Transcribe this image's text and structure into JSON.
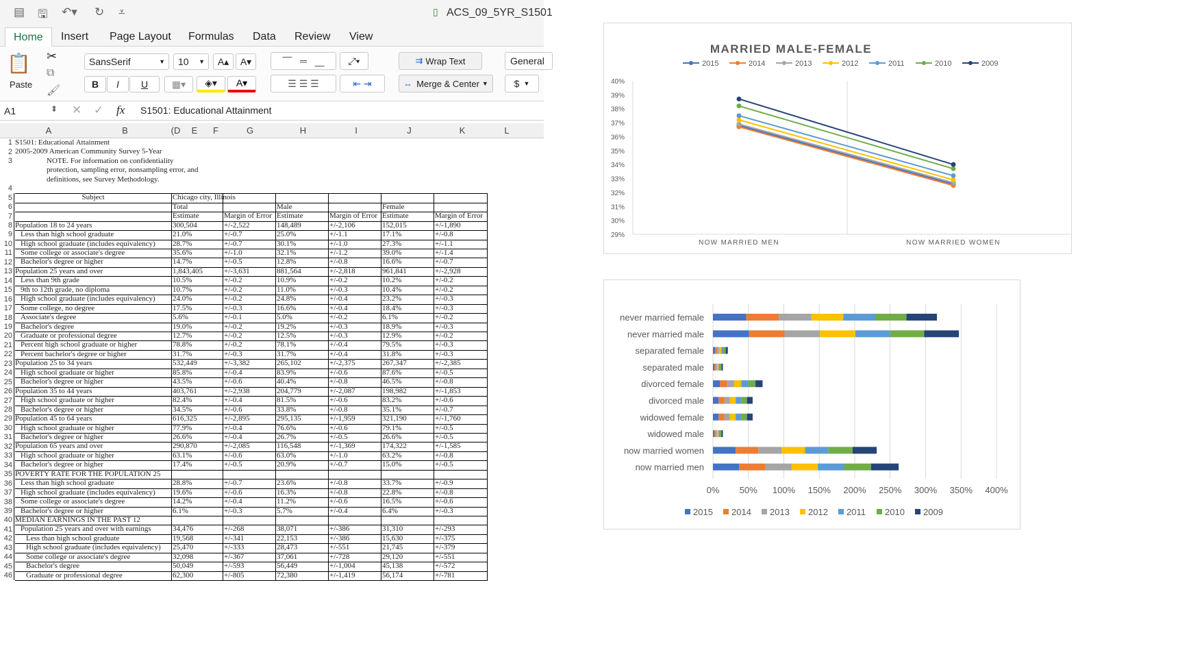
{
  "window": {
    "title": "ACS_09_5YR_S1501"
  },
  "tabs": [
    "Home",
    "Insert",
    "Page Layout",
    "Formulas",
    "Data",
    "Review",
    "View"
  ],
  "ribbon": {
    "paste": "Paste",
    "font": "SansSerif",
    "size": "10",
    "wrap": "Wrap Text",
    "merge": "Merge & Center",
    "number_format": "General",
    "currency": "$",
    "bold": "B",
    "italic": "I",
    "underline": "U"
  },
  "formula_bar": {
    "cell": "A1",
    "fx": "fx",
    "formula": "S1501: Educational Attainment"
  },
  "columns": [
    "A",
    "B",
    "(D",
    "E",
    "F",
    "G",
    "H",
    "I",
    "J",
    "K",
    "L"
  ],
  "sheet": {
    "header_rows": [
      {
        "n": "1",
        "a": "S1501: Educational Attainment"
      },
      {
        "n": "2",
        "a": "2005-2009 American Community Survey 5-Year"
      },
      {
        "n": "3",
        "a": "NOTE. For information on confidentiality"
      },
      {
        "n": "",
        "a": "protection, sampling error, nonsampling error, and"
      },
      {
        "n": "",
        "a": "definitions, see Survey Methodology."
      },
      {
        "n": "4",
        "a": ""
      }
    ],
    "subject": "Subject",
    "place": "Chicago city, Illinois",
    "groups": [
      "Total",
      "Male",
      "Female"
    ],
    "subheads": [
      "Estimate",
      "Margin of Error",
      "Estimate",
      "Margin of Error",
      "Estimate",
      "Margin of Error"
    ],
    "data": [
      {
        "n": "8",
        "s": "Population 18 to 24 years",
        "i": 0,
        "v": [
          "300,504",
          "+/-2,522",
          "148,489",
          "+/-2,106",
          "152,015",
          "+/-1,890"
        ]
      },
      {
        "n": "9",
        "s": "Less than high school graduate",
        "i": 1,
        "v": [
          "21.0%",
          "+/-0.7",
          "25.0%",
          "+/-1.1",
          "17.1%",
          "+/-0.8"
        ]
      },
      {
        "n": "10",
        "s": "High school graduate (includes equivalency)",
        "i": 1,
        "v": [
          "28.7%",
          "+/-0.7",
          "30.1%",
          "+/-1.0",
          "27.3%",
          "+/-1.1"
        ]
      },
      {
        "n": "11",
        "s": "Some college or associate's degree",
        "i": 1,
        "v": [
          "35.6%",
          "+/-1.0",
          "32.1%",
          "+/-1.2",
          "39.0%",
          "+/-1.4"
        ]
      },
      {
        "n": "12",
        "s": "Bachelor's degree or higher",
        "i": 1,
        "v": [
          "14.7%",
          "+/-0.5",
          "12.8%",
          "+/-0.8",
          "16.6%",
          "+/-0.7"
        ]
      },
      {
        "n": "13",
        "s": "Population 25 years and over",
        "i": 0,
        "v": [
          "1,843,405",
          "+/-3,631",
          "881,564",
          "+/-2,818",
          "961,841",
          "+/-2,928"
        ]
      },
      {
        "n": "14",
        "s": "Less than 9th grade",
        "i": 1,
        "v": [
          "10.5%",
          "+/-0.2",
          "10.9%",
          "+/-0.2",
          "10.2%",
          "+/-0.2"
        ]
      },
      {
        "n": "15",
        "s": "9th to 12th grade, no diploma",
        "i": 1,
        "v": [
          "10.7%",
          "+/-0.2",
          "11.0%",
          "+/-0.3",
          "10.4%",
          "+/-0.2"
        ]
      },
      {
        "n": "16",
        "s": "High school graduate (includes equivalency)",
        "i": 1,
        "v": [
          "24.0%",
          "+/-0.2",
          "24.8%",
          "+/-0.4",
          "23.2%",
          "+/-0.3"
        ]
      },
      {
        "n": "17",
        "s": "Some college, no degree",
        "i": 1,
        "v": [
          "17.5%",
          "+/-0.3",
          "16.6%",
          "+/-0.4",
          "18.4%",
          "+/-0.3"
        ]
      },
      {
        "n": "18",
        "s": "Associate's degree",
        "i": 1,
        "v": [
          "5.6%",
          "+/-0.1",
          "5.0%",
          "+/-0.2",
          "6.1%",
          "+/-0.2"
        ]
      },
      {
        "n": "19",
        "s": "Bachelor's degree",
        "i": 1,
        "v": [
          "19.0%",
          "+/-0.2",
          "19.2%",
          "+/-0.3",
          "18.9%",
          "+/-0.3"
        ]
      },
      {
        "n": "20",
        "s": "Graduate or professional degree",
        "i": 1,
        "v": [
          "12.7%",
          "+/-0.2",
          "12.5%",
          "+/-0.3",
          "12.9%",
          "+/-0.2"
        ]
      },
      {
        "n": "21",
        "s": "Percent high school graduate or higher",
        "i": 1,
        "v": [
          "78.8%",
          "+/-0.2",
          "78.1%",
          "+/-0.4",
          "79.5%",
          "+/-0.3"
        ]
      },
      {
        "n": "22",
        "s": "Percent bachelor's degree or higher",
        "i": 1,
        "v": [
          "31.7%",
          "+/-0.3",
          "31.7%",
          "+/-0.4",
          "31.8%",
          "+/-0.3"
        ]
      },
      {
        "n": "23",
        "s": "Population 25 to 34 years",
        "i": 0,
        "v": [
          "532,449",
          "+/-3,382",
          "265,102",
          "+/-2,375",
          "267,347",
          "+/-2,385"
        ]
      },
      {
        "n": "24",
        "s": "High school graduate or higher",
        "i": 1,
        "v": [
          "85.8%",
          "+/-0.4",
          "83.9%",
          "+/-0.6",
          "87.6%",
          "+/-0.5"
        ]
      },
      {
        "n": "25",
        "s": "Bachelor's degree or higher",
        "i": 1,
        "v": [
          "43.5%",
          "+/-0.6",
          "40.4%",
          "+/-0.8",
          "46.5%",
          "+/-0.8"
        ]
      },
      {
        "n": "26",
        "s": "Population 35 to 44 years",
        "i": 0,
        "v": [
          "403,761",
          "+/-2,938",
          "204,779",
          "+/-2,087",
          "198,982",
          "+/-1,853"
        ]
      },
      {
        "n": "27",
        "s": "High school graduate or higher",
        "i": 1,
        "v": [
          "82.4%",
          "+/-0.4",
          "81.5%",
          "+/-0.6",
          "83.2%",
          "+/-0.6"
        ]
      },
      {
        "n": "28",
        "s": "Bachelor's degree or higher",
        "i": 1,
        "v": [
          "34.5%",
          "+/-0.6",
          "33.8%",
          "+/-0.8",
          "35.1%",
          "+/-0.7"
        ]
      },
      {
        "n": "29",
        "s": "Population 45 to 64 years",
        "i": 0,
        "v": [
          "616,325",
          "+/-2,895",
          "295,135",
          "+/-1,959",
          "321,190",
          "+/-1,760"
        ]
      },
      {
        "n": "30",
        "s": "High school graduate or higher",
        "i": 1,
        "v": [
          "77.9%",
          "+/-0.4",
          "76.6%",
          "+/-0.6",
          "79.1%",
          "+/-0.5"
        ]
      },
      {
        "n": "31",
        "s": "Bachelor's degree or higher",
        "i": 1,
        "v": [
          "26.6%",
          "+/-0.4",
          "26.7%",
          "+/-0.5",
          "26.6%",
          "+/-0.5"
        ]
      },
      {
        "n": "32",
        "s": "Population 65 years and over",
        "i": 0,
        "v": [
          "290,870",
          "+/-2,085",
          "116,548",
          "+/-1,369",
          "174,322",
          "+/-1,585"
        ]
      },
      {
        "n": "33",
        "s": "High school graduate or higher",
        "i": 1,
        "v": [
          "63.1%",
          "+/-0.6",
          "63.0%",
          "+/-1.0",
          "63.2%",
          "+/-0.8"
        ]
      },
      {
        "n": "34",
        "s": "Bachelor's degree or higher",
        "i": 1,
        "v": [
          "17.4%",
          "+/-0.5",
          "20.9%",
          "+/-0.7",
          "15.0%",
          "+/-0.5"
        ]
      },
      {
        "n": "35",
        "s": "POVERTY RATE FOR THE POPULATION 25",
        "i": 0,
        "v": [
          "",
          "",
          "",
          "",
          "",
          ""
        ]
      },
      {
        "n": "36",
        "s": "Less than high school graduate",
        "i": 1,
        "v": [
          "28.8%",
          "+/-0.7",
          "23.6%",
          "+/-0.8",
          "33.7%",
          "+/-0.9"
        ]
      },
      {
        "n": "37",
        "s": "High school graduate (includes equivalency)",
        "i": 1,
        "v": [
          "19.6%",
          "+/-0.6",
          "16.3%",
          "+/-0.8",
          "22.8%",
          "+/-0.8"
        ]
      },
      {
        "n": "38",
        "s": "Some college or associate's degree",
        "i": 1,
        "v": [
          "14.2%",
          "+/-0.4",
          "11.2%",
          "+/-0.6",
          "16.5%",
          "+/-0.6"
        ]
      },
      {
        "n": "39",
        "s": "Bachelor's degree or higher",
        "i": 1,
        "v": [
          "6.1%",
          "+/-0.3",
          "5.7%",
          "+/-0.4",
          "6.4%",
          "+/-0.3"
        ]
      },
      {
        "n": "40",
        "s": "MEDIAN EARNINGS IN THE PAST 12",
        "i": 0,
        "v": [
          "",
          "",
          "",
          "",
          "",
          ""
        ]
      },
      {
        "n": "41",
        "s": "Population 25 years and over with earnings",
        "i": 1,
        "v": [
          "34,476",
          "+/-268",
          "38,071",
          "+/-386",
          "31,310",
          "+/-293"
        ]
      },
      {
        "n": "42",
        "s": "Less than high school graduate",
        "i": 2,
        "v": [
          "19,568",
          "+/-341",
          "22,153",
          "+/-386",
          "15,630",
          "+/-375"
        ]
      },
      {
        "n": "43",
        "s": "High school graduate (includes equivalency)",
        "i": 2,
        "v": [
          "25,470",
          "+/-333",
          "28,473",
          "+/-551",
          "21,745",
          "+/-379"
        ]
      },
      {
        "n": "44",
        "s": "Some college or associate's degree",
        "i": 2,
        "v": [
          "32,098",
          "+/-367",
          "37,061",
          "+/-728",
          "29,120",
          "+/-551"
        ]
      },
      {
        "n": "45",
        "s": "Bachelor's degree",
        "i": 2,
        "v": [
          "50,049",
          "+/-593",
          "56,449",
          "+/-1,004",
          "45,138",
          "+/-572"
        ]
      },
      {
        "n": "46",
        "s": "Graduate or professional degree",
        "i": 2,
        "v": [
          "62,300",
          "+/-805",
          "72,380",
          "+/-1,419",
          "56,174",
          "+/-781"
        ]
      }
    ]
  },
  "chart_data": [
    {
      "type": "line",
      "title": "MARRIED MALE-FEMALE",
      "categories": [
        "NOW MARRIED  MEN",
        "NOW MARRIED WOMEN"
      ],
      "ylim": [
        29,
        40
      ],
      "yticks": [
        "29%",
        "30%",
        "31%",
        "32%",
        "33%",
        "34%",
        "35%",
        "36%",
        "37%",
        "38%",
        "39%",
        "40%"
      ],
      "legend": "top",
      "series": [
        {
          "name": "2015",
          "values": [
            36.8,
            32.6
          ],
          "color": "#4472c4"
        },
        {
          "name": "2014",
          "values": [
            36.7,
            32.5
          ],
          "color": "#ed7d31"
        },
        {
          "name": "2013",
          "values": [
            36.9,
            32.7
          ],
          "color": "#a5a5a5"
        },
        {
          "name": "2012",
          "values": [
            37.2,
            32.9
          ],
          "color": "#ffc000"
        },
        {
          "name": "2011",
          "values": [
            37.5,
            33.2
          ],
          "color": "#5b9bd5"
        },
        {
          "name": "2010",
          "values": [
            38.2,
            33.7
          ],
          "color": "#70ad47"
        },
        {
          "name": "2009",
          "values": [
            38.7,
            34.0
          ],
          "color": "#264478"
        }
      ]
    },
    {
      "type": "bar",
      "stacked": true,
      "orientation": "horizontal",
      "categories": [
        "never married female",
        "never married male",
        "separated female",
        "separated male",
        "divorced female",
        "divorced male",
        "widowed female",
        "widowed male",
        "now married women",
        "now married  men"
      ],
      "xticks": [
        "0%",
        "50%",
        "100%",
        "150%",
        "200%",
        "250%",
        "300%",
        "350%",
        "400%"
      ],
      "xlim": [
        0,
        400
      ],
      "legend": "bottom",
      "series": [
        {
          "name": "2015",
          "color": "#4472c4",
          "values": [
            47,
            51,
            3,
            2,
            10,
            8,
            8,
            2,
            32,
            37
          ]
        },
        {
          "name": "2014",
          "color": "#ed7d31",
          "values": [
            46,
            50,
            3,
            2,
            10,
            8,
            8,
            2,
            32,
            37
          ]
        },
        {
          "name": "2013",
          "color": "#a5a5a5",
          "values": [
            46,
            50,
            3,
            2,
            10,
            8,
            8,
            2,
            33,
            37
          ]
        },
        {
          "name": "2012",
          "color": "#ffc000",
          "values": [
            45,
            50,
            3,
            2,
            10,
            8,
            8,
            2,
            33,
            37
          ]
        },
        {
          "name": "2011",
          "color": "#5b9bd5",
          "values": [
            45,
            49,
            3,
            2,
            10,
            8,
            8,
            2,
            33,
            37
          ]
        },
        {
          "name": "2010",
          "color": "#70ad47",
          "values": [
            44,
            48,
            3,
            2,
            10,
            8,
            8,
            2,
            34,
            38
          ]
        },
        {
          "name": "2009",
          "color": "#264478",
          "values": [
            43,
            49,
            3,
            2,
            10,
            8,
            8,
            2,
            34,
            39
          ]
        }
      ]
    }
  ]
}
